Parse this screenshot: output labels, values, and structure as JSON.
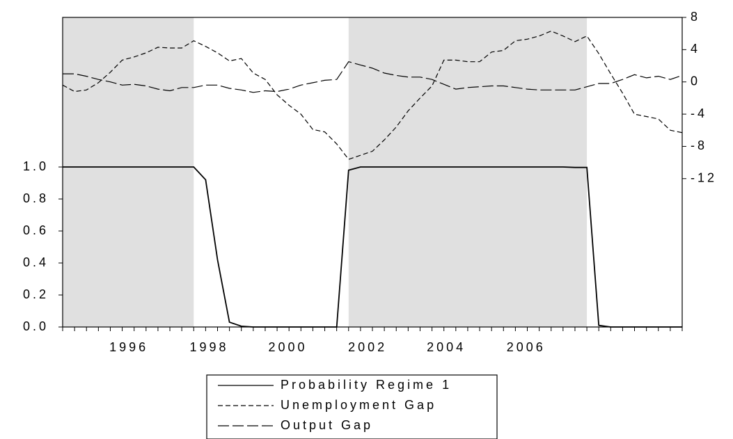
{
  "chart_data": {
    "type": "line",
    "x": [
      0,
      1,
      2,
      3,
      4,
      5,
      6,
      7,
      8,
      9,
      10,
      11,
      12,
      13,
      14,
      15,
      16,
      17,
      18,
      19,
      20,
      21,
      22,
      23,
      24,
      25,
      26,
      27,
      28,
      29,
      30,
      31,
      32,
      33,
      34,
      35,
      36,
      37,
      38,
      39,
      40,
      41,
      42,
      43,
      44,
      45,
      46,
      47,
      48,
      49,
      50,
      51,
      52
    ],
    "xlim": [
      0,
      52
    ],
    "xticks": [
      {
        "value": 5.56,
        "label": "1996"
      },
      {
        "value": 12.3,
        "label": "1998"
      },
      {
        "value": 18.9,
        "label": "2000"
      },
      {
        "value": 25.6,
        "label": "2002"
      },
      {
        "value": 32.2,
        "label": "2004"
      },
      {
        "value": 38.9,
        "label": "2006"
      }
    ],
    "ylim": [
      0,
      1.935
    ],
    "yticks": [
      {
        "value": 0,
        "label": "0.0"
      },
      {
        "value": 0.2,
        "label": "0.2"
      },
      {
        "value": 0.4,
        "label": "0.4"
      },
      {
        "value": 0.6,
        "label": "0.6"
      },
      {
        "value": 0.8,
        "label": "0.8"
      },
      {
        "value": 1,
        "label": "1.0"
      }
    ],
    "y2lim": [
      -30.4,
      8
    ],
    "y2ticks": [
      8,
      4,
      0,
      -4,
      -8,
      -12
    ],
    "shaded_regions": [
      [
        0,
        11
      ],
      [
        24,
        44
      ]
    ],
    "shade_color": "#e0e0e0",
    "series": [
      {
        "name": "Probability Regime 1",
        "color": "#000000",
        "style": "solid",
        "values": [
          1,
          1,
          1,
          1,
          1,
          1,
          1,
          1,
          1,
          1,
          1,
          1,
          0.92,
          0.42,
          0.03,
          0.005,
          0,
          0,
          0,
          0,
          0,
          0,
          0,
          0,
          0.98,
          1,
          1,
          1,
          1,
          1,
          1,
          1,
          1,
          1,
          1,
          1,
          1,
          1,
          1,
          1,
          1,
          1,
          1,
          0.997,
          0.997,
          0.01,
          0,
          0,
          0,
          0,
          0,
          0,
          0
        ]
      },
      {
        "name": "Unemployment Gap",
        "color": "#000000",
        "style": "dashed",
        "axis": "y2",
        "values": [
          -0.4,
          -1.2,
          -1.0,
          -0.1,
          1.2,
          2.7,
          3.1,
          3.6,
          4.3,
          4.2,
          4.2,
          5.1,
          4.4,
          3.6,
          2.6,
          2.9,
          1.1,
          0.3,
          -1.6,
          -2.9,
          -4.0,
          -5.9,
          -6.2,
          -7.7,
          -9.6,
          -9.1,
          -8.6,
          -7.2,
          -5.6,
          -3.6,
          -2.0,
          -0.5,
          2.7,
          2.7,
          2.5,
          2.5,
          3.7,
          3.9,
          5.1,
          5.3,
          5.7,
          6.3,
          5.7,
          5.0,
          5.7,
          3.5,
          1.0,
          -1.4,
          -4.0,
          -4.3,
          -4.6,
          -6.0,
          -6.3
        ]
      },
      {
        "name": "Output Gap",
        "color": "#000000",
        "style": "longdash",
        "axis": "y2",
        "values": [
          1.0,
          1.0,
          0.7,
          0.3,
          0,
          -0.4,
          -0.3,
          -0.5,
          -0.9,
          -1.1,
          -0.7,
          -0.7,
          -0.4,
          -0.4,
          -0.8,
          -1.0,
          -1.3,
          -1.1,
          -1.2,
          -0.9,
          -0.4,
          -0.1,
          0.2,
          0.3,
          2.5,
          2.1,
          1.7,
          1.1,
          0.8,
          0.6,
          0.6,
          0.3,
          -0.3,
          -0.9,
          -0.7,
          -0.6,
          -0.5,
          -0.5,
          -0.7,
          -0.9,
          -1.0,
          -1.0,
          -1.0,
          -1.0,
          -0.6,
          -0.2,
          -0.2,
          0.3,
          0.9,
          0.5,
          0.7,
          0.3,
          0.8
        ]
      }
    ]
  }
}
